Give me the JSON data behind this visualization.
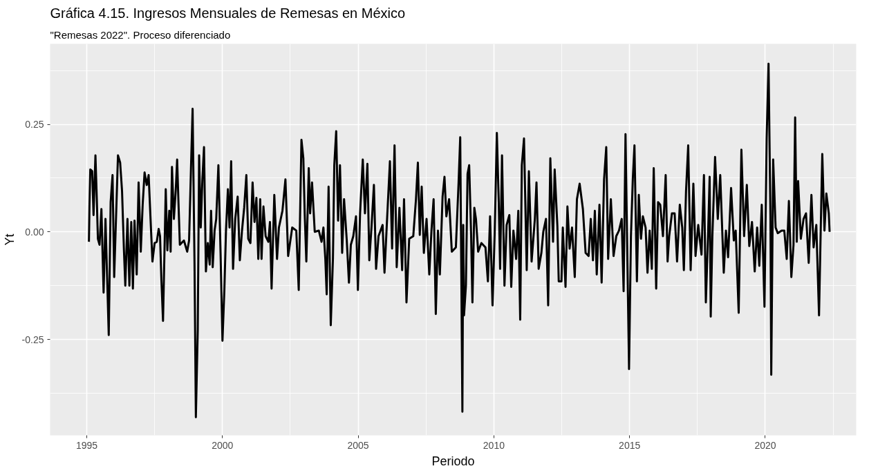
{
  "chart_data": {
    "type": "line",
    "title": "Gráfica 4.15. Ingresos Mensuales de Remesas en México",
    "subtitle": "\"Remesas 2022\". Proceso diferenciado",
    "xlabel": "Periodo",
    "ylabel": "Yt",
    "xlim": [
      1993.65,
      2023.35
    ],
    "ylim": [
      -0.473,
      0.437
    ],
    "xticks": [
      1995,
      2000,
      2005,
      2010,
      2015,
      2020
    ],
    "yticks": [
      {
        "value": -0.25,
        "label": "-0.25"
      },
      {
        "value": 0,
        "label": "0.00"
      },
      {
        "value": 0.25,
        "label": "0.25"
      }
    ],
    "grid": true,
    "x": [
      1995.08,
      1995.1,
      1995.13,
      1995.2,
      1995.25,
      1995.32,
      1995.37,
      1995.41,
      1995.47,
      1995.54,
      1995.62,
      1995.69,
      1995.75,
      1995.81,
      1995.88,
      1995.95,
      1996.01,
      1996.08,
      1996.15,
      1996.23,
      1996.3,
      1996.37,
      1996.42,
      1996.5,
      1996.57,
      1996.64,
      1996.7,
      1996.76,
      1996.84,
      1996.91,
      1996.99,
      1997.06,
      1997.13,
      1997.21,
      1997.28,
      1997.35,
      1997.42,
      1997.5,
      1997.58,
      1997.65,
      1997.7,
      1997.75,
      1997.81,
      1997.86,
      1997.91,
      1997.97,
      1998.04,
      1998.09,
      1998.14,
      1998.21,
      1998.28,
      1998.33,
      1998.38,
      1998.43,
      1998.58,
      1998.7,
      1998.77,
      1998.84,
      1998.9,
      1998.97,
      1999.02,
      1999.09,
      1999.14,
      1999.2,
      1999.26,
      1999.32,
      1999.39,
      1999.46,
      1999.53,
      1999.58,
      1999.64,
      1999.71,
      1999.77,
      1999.85,
      1999.93,
      2000.0,
      2000.07,
      2000.13,
      2000.2,
      2000.26,
      2000.32,
      2000.39,
      2000.47,
      2000.56,
      2000.64,
      2000.72,
      2000.8,
      2000.88,
      2000.95,
      2001.03,
      2001.11,
      2001.18,
      2001.25,
      2001.32,
      2001.39,
      2001.44,
      2001.51,
      2001.59,
      2001.69,
      2001.75,
      2001.81,
      2001.91,
      2002.01,
      2002.08,
      2002.21,
      2002.32,
      2002.42,
      2002.57,
      2002.72,
      2002.81,
      2002.91,
      2002.98,
      2003.03,
      2003.09,
      2003.18,
      2003.23,
      2003.3,
      2003.4,
      2003.55,
      2003.65,
      2003.72,
      2003.79,
      2003.84,
      2003.91,
      2003.99,
      2004.07,
      2004.12,
      2004.19,
      2004.26,
      2004.33,
      2004.41,
      2004.48,
      2004.58,
      2004.66,
      2004.73,
      2004.82,
      2004.92,
      2004.99,
      2005.07,
      2005.17,
      2005.25,
      2005.34,
      2005.41,
      2005.49,
      2005.58,
      2005.66,
      2005.75,
      2005.9,
      2005.97,
      2006.07,
      2006.17,
      2006.25,
      2006.34,
      2006.42,
      2006.52,
      2006.62,
      2006.69,
      2006.78,
      2006.88,
      2007.03,
      2007.13,
      2007.2,
      2007.27,
      2007.34,
      2007.42,
      2007.52,
      2007.62,
      2007.7,
      2007.78,
      2007.86,
      2007.94,
      2008.01,
      2008.11,
      2008.18,
      2008.25,
      2008.35,
      2008.45,
      2008.6,
      2008.7,
      2008.76,
      2008.8,
      2008.84,
      2008.87,
      2008.9,
      2008.97,
      2009.03,
      2009.09,
      2009.16,
      2009.21,
      2009.28,
      2009.34,
      2009.42,
      2009.54,
      2009.69,
      2009.78,
      2009.86,
      2009.95,
      2010.03,
      2010.11,
      2010.18,
      2010.23,
      2010.3,
      2010.39,
      2010.47,
      2010.57,
      2010.64,
      2010.72,
      2010.82,
      2010.9,
      2010.97,
      2011.03,
      2011.11,
      2011.21,
      2011.29,
      2011.39,
      2011.51,
      2011.57,
      2011.65,
      2011.75,
      2011.82,
      2011.92,
      2012.0,
      2012.08,
      2012.18,
      2012.24,
      2012.34,
      2012.39,
      2012.49,
      2012.54,
      2012.64,
      2012.71,
      2012.79,
      2012.88,
      2012.98,
      2013.06,
      2013.16,
      2013.28,
      2013.38,
      2013.49,
      2013.57,
      2013.65,
      2013.72,
      2013.79,
      2013.89,
      2013.97,
      2014.06,
      2014.14,
      2014.21,
      2014.31,
      2014.41,
      2014.51,
      2014.61,
      2014.71,
      2014.78,
      2014.85,
      2014.98,
      2015.05,
      2015.12,
      2015.18,
      2015.27,
      2015.34,
      2015.42,
      2015.49,
      2015.59,
      2015.66,
      2015.74,
      2015.82,
      2015.89,
      2015.98,
      2016.05,
      2016.13,
      2016.23,
      2016.33,
      2016.4,
      2016.46,
      2016.56,
      2016.66,
      2016.75,
      2016.85,
      2016.94,
      2017.0,
      2017.08,
      2017.16,
      2017.25,
      2017.35,
      2017.43,
      2017.53,
      2017.65,
      2017.74,
      2017.81,
      2017.89,
      2017.95,
      2017.99,
      2018.05,
      2018.15,
      2018.25,
      2018.34,
      2018.47,
      2018.55,
      2018.63,
      2018.74,
      2018.84,
      2018.91,
      2019.02,
      2019.12,
      2019.22,
      2019.32,
      2019.41,
      2019.51,
      2019.61,
      2019.7,
      2019.78,
      2019.87,
      2019.97,
      2020.05,
      2020.12,
      2020.19,
      2020.22,
      2020.29,
      2020.38,
      2020.46,
      2020.6,
      2020.7,
      2020.79,
      2020.87,
      2020.96,
      2021.04,
      2021.1,
      2021.16,
      2021.21,
      2021.31,
      2021.41,
      2021.5,
      2021.6,
      2021.7,
      2021.78,
      2021.88,
      2021.93,
      2021.98,
      2022.04,
      2022.1,
      2022.18,
      2022.25,
      2022.34,
      2022.37
    ],
    "series": [
      {
        "color": "#000000",
        "values": [
          -0.023,
          0.059,
          0.145,
          0.141,
          0.039,
          0.178,
          0.076,
          -0.016,
          -0.03,
          0.053,
          -0.141,
          0.03,
          -0.105,
          -0.24,
          0.069,
          0.132,
          -0.105,
          0.036,
          0.178,
          0.161,
          0.095,
          -0.043,
          -0.125,
          0.03,
          -0.125,
          0.023,
          -0.132,
          0.026,
          -0.099,
          0.115,
          -0.046,
          0.063,
          0.138,
          0.109,
          0.132,
          0.03,
          -0.069,
          -0.026,
          -0.023,
          0.007,
          -0.01,
          -0.112,
          -0.207,
          -0.056,
          0.099,
          -0.043,
          0.049,
          -0.046,
          0.151,
          0.03,
          0.099,
          0.168,
          0.066,
          -0.03,
          -0.02,
          -0.046,
          -0.02,
          0.148,
          0.286,
          -0.072,
          -0.431,
          -0.227,
          0.178,
          0.01,
          0.122,
          0.197,
          -0.092,
          -0.026,
          -0.076,
          0.049,
          -0.082,
          0.003,
          0.03,
          0.155,
          -0.049,
          -0.253,
          -0.135,
          0.003,
          0.099,
          0.01,
          0.164,
          -0.086,
          0.03,
          0.082,
          -0.066,
          0.003,
          0.056,
          0.132,
          -0.016,
          -0.026,
          0.115,
          0.023,
          0.079,
          -0.063,
          0.076,
          -0.063,
          0.059,
          -0.01,
          -0.023,
          0.023,
          -0.132,
          0.086,
          -0.063,
          0.01,
          0.049,
          0.122,
          -0.056,
          0.01,
          0.003,
          -0.135,
          0.214,
          0.171,
          0.043,
          -0.069,
          0.148,
          0.043,
          0.115,
          0,
          0.003,
          -0.023,
          0.01,
          -0.063,
          -0.145,
          0.105,
          -0.217,
          -0.063,
          0.155,
          0.234,
          0.026,
          0.155,
          -0.049,
          0.076,
          -0.02,
          -0.118,
          -0.03,
          -0.01,
          0.036,
          -0.135,
          0.043,
          0.168,
          0.043,
          0.158,
          -0.066,
          0.01,
          0.109,
          -0.086,
          -0.01,
          0.016,
          -0.095,
          0.036,
          0.164,
          -0.039,
          0.201,
          -0.082,
          0.056,
          -0.089,
          0.076,
          -0.164,
          -0.016,
          -0.01,
          0.076,
          0.161,
          -0.007,
          0.105,
          -0.049,
          0.03,
          -0.099,
          0.003,
          0.076,
          -0.191,
          0.003,
          -0.099,
          0.082,
          0.128,
          0.036,
          0.076,
          -0.046,
          -0.036,
          0.115,
          0.22,
          -0.095,
          -0.418,
          0.016,
          -0.194,
          -0.125,
          0.135,
          0.155,
          -0.003,
          -0.164,
          0.056,
          0.03,
          -0.046,
          -0.026,
          -0.036,
          -0.115,
          0.036,
          -0.171,
          -0.003,
          0.23,
          0.069,
          -0.086,
          0.178,
          -0.125,
          0.016,
          0.039,
          -0.128,
          0.003,
          -0.063,
          0.049,
          -0.204,
          0.155,
          0.217,
          -0.089,
          0.141,
          -0.069,
          0.03,
          0.115,
          -0.086,
          -0.049,
          0,
          0.03,
          -0.171,
          0.171,
          -0.023,
          0.145,
          0.013,
          -0.115,
          -0.115,
          0.01,
          -0.128,
          0.059,
          -0.039,
          0.01,
          -0.105,
          0.076,
          0.112,
          0.053,
          -0.049,
          -0.056,
          0.03,
          -0.066,
          0.049,
          -0.099,
          0.063,
          -0.118,
          0.122,
          0.197,
          -0.063,
          0.076,
          -0.056,
          -0.01,
          0.003,
          0.03,
          -0.138,
          0.227,
          -0.319,
          -0.01,
          0.125,
          0.201,
          -0.115,
          0.086,
          -0.016,
          0.036,
          0.01,
          -0.095,
          0.003,
          -0.086,
          0.148,
          -0.132,
          0.069,
          0.063,
          -0.01,
          0.132,
          -0.069,
          -0.01,
          0.043,
          0.043,
          -0.069,
          0.063,
          0.01,
          -0.089,
          0.095,
          0.201,
          -0.089,
          0.112,
          -0.056,
          0.016,
          -0.053,
          0.132,
          -0.164,
          -0.01,
          0.128,
          -0.197,
          -0.01,
          0.174,
          0.03,
          0.132,
          -0.095,
          0.003,
          -0.059,
          0.102,
          -0.02,
          0.003,
          -0.188,
          0.191,
          -0.01,
          0.109,
          -0.033,
          0.023,
          -0.092,
          0.01,
          -0.079,
          0.063,
          -0.174,
          0.217,
          0.391,
          0.036,
          -0.332,
          0.168,
          0.01,
          -0.003,
          0.003,
          0.003,
          -0.063,
          0.072,
          -0.105,
          -0.03,
          0.266,
          -0.023,
          0.118,
          -0.016,
          0.03,
          0.043,
          -0.072,
          0.086,
          -0.036,
          0.016,
          -0.089,
          -0.194,
          -0.003,
          0.181,
          0.003,
          0.089,
          0.043,
          0.0
        ]
      }
    ]
  }
}
